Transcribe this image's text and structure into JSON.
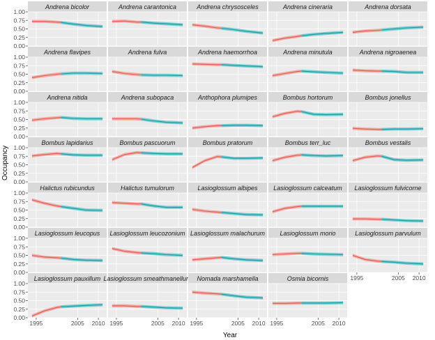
{
  "chart_data": {
    "type": "line",
    "xlabel": "Year",
    "ylabel": "Occupancy",
    "xlim": [
      1993,
      2012
    ],
    "ylim": [
      0,
      1.0
    ],
    "xticks": [
      1995,
      2005,
      2010
    ],
    "yticks": [
      0.0,
      0.25,
      0.5,
      0.75,
      1.0
    ],
    "ytick_labels": [
      "0.00",
      "0.25",
      "0.50",
      "0.75",
      "1.00"
    ],
    "xtick_labels": [
      "1995",
      "2005",
      "2010"
    ],
    "grid": true,
    "x": [
      1994,
      1997,
      2000,
      2001,
      2004,
      2007,
      2011
    ],
    "colors": {
      "early": "#f07a70",
      "late": "#1fb3b8",
      "line_early": "#e05a50",
      "line_late": "#119ba0",
      "panel": "#ebebeb",
      "strip": "#d9d9d9"
    },
    "panels": [
      {
        "title": "Andrena bicolor",
        "early": [
          0.72,
          0.72,
          0.7,
          0.69
        ],
        "late": [
          0.69,
          0.64,
          0.6,
          0.57
        ]
      },
      {
        "title": "Andrena carantonica",
        "early": [
          0.72,
          0.73,
          0.7,
          0.7
        ],
        "late": [
          0.7,
          0.67,
          0.65,
          0.62
        ]
      },
      {
        "title": "Andrena chrysosceles",
        "early": [
          0.62,
          0.58,
          0.53,
          0.52
        ],
        "late": [
          0.52,
          0.48,
          0.43,
          0.38
        ]
      },
      {
        "title": "Andrena cineraria",
        "early": [
          0.16,
          0.23,
          0.28,
          0.3
        ],
        "late": [
          0.3,
          0.34,
          0.37,
          0.4
        ]
      },
      {
        "title": "Andrena dorsata",
        "early": [
          0.4,
          0.44,
          0.46,
          0.47
        ],
        "late": [
          0.47,
          0.5,
          0.53,
          0.55
        ]
      },
      {
        "title": "Andrena flavipes",
        "early": [
          0.4,
          0.46,
          0.5,
          0.51
        ],
        "late": [
          0.51,
          0.53,
          0.53,
          0.52
        ]
      },
      {
        "title": "Andrena fulva",
        "early": [
          0.58,
          0.52,
          0.49,
          0.48
        ],
        "late": [
          0.48,
          0.47,
          0.47,
          0.46
        ]
      },
      {
        "title": "Andrena haemorrhoa",
        "early": [
          0.8,
          0.79,
          0.78,
          0.78
        ],
        "late": [
          0.78,
          0.76,
          0.74,
          0.72
        ]
      },
      {
        "title": "Andrena minutula",
        "early": [
          0.46,
          0.52,
          0.58,
          0.59
        ],
        "late": [
          0.59,
          0.57,
          0.55,
          0.53
        ]
      },
      {
        "title": "Andrena nigroaenea",
        "early": [
          0.62,
          0.6,
          0.59,
          0.59
        ],
        "late": [
          0.59,
          0.58,
          0.55,
          0.55
        ]
      },
      {
        "title": "Andrena nitida",
        "early": [
          0.48,
          0.52,
          0.55,
          0.56
        ],
        "late": [
          0.56,
          0.53,
          0.52,
          0.52
        ]
      },
      {
        "title": "Andrena subopaca",
        "early": [
          0.52,
          0.52,
          0.52,
          0.51
        ],
        "late": [
          0.51,
          0.46,
          0.42,
          0.4
        ]
      },
      {
        "title": "Anthophora plumipes",
        "early": [
          0.25,
          0.29,
          0.32,
          0.32
        ],
        "late": [
          0.32,
          0.33,
          0.33,
          0.32
        ]
      },
      {
        "title": "Bombus hortorum",
        "early": [
          0.58,
          0.68,
          0.74,
          0.73
        ],
        "late": [
          0.73,
          0.65,
          0.64,
          0.65
        ]
      },
      {
        "title": "Bombus jonellus",
        "early": [
          0.24,
          0.22,
          0.21,
          0.21
        ],
        "late": [
          0.21,
          0.22,
          0.22,
          0.23
        ]
      },
      {
        "title": "Bombus lapidarius",
        "early": [
          0.76,
          0.8,
          0.83,
          0.82
        ],
        "late": [
          0.82,
          0.79,
          0.78,
          0.78
        ]
      },
      {
        "title": "Bombus pascuorum",
        "early": [
          0.65,
          0.8,
          0.86,
          0.85
        ],
        "late": [
          0.85,
          0.83,
          0.82,
          0.82
        ]
      },
      {
        "title": "Bombus pratorum",
        "early": [
          0.42,
          0.62,
          0.74,
          0.73
        ],
        "late": [
          0.73,
          0.69,
          0.69,
          0.7
        ]
      },
      {
        "title": "Bombus terr_luc",
        "early": [
          0.62,
          0.72,
          0.78,
          0.79
        ],
        "late": [
          0.79,
          0.77,
          0.76,
          0.77
        ]
      },
      {
        "title": "Bombus vestalis",
        "early": [
          0.62,
          0.72,
          0.76,
          0.75
        ],
        "late": [
          0.75,
          0.65,
          0.63,
          0.64
        ]
      },
      {
        "title": "Halictus rubicundus",
        "early": [
          0.8,
          0.7,
          0.62,
          0.6
        ],
        "late": [
          0.6,
          0.55,
          0.5,
          0.49
        ]
      },
      {
        "title": "Halictus tumulorum",
        "early": [
          0.72,
          0.7,
          0.68,
          0.68
        ],
        "late": [
          0.68,
          0.62,
          0.58,
          0.58
        ]
      },
      {
        "title": "Lasioglossum albipes",
        "early": [
          0.52,
          0.47,
          0.44,
          0.43
        ],
        "late": [
          0.43,
          0.4,
          0.37,
          0.36
        ]
      },
      {
        "title": "Lasioglossum calceatum",
        "early": [
          0.45,
          0.55,
          0.6,
          0.61
        ],
        "late": [
          0.61,
          0.61,
          0.61,
          0.61
        ]
      },
      {
        "title": "Lasioglossum fulvicorne",
        "early": [
          0.24,
          0.24,
          0.23,
          0.23
        ],
        "late": [
          0.23,
          0.21,
          0.19,
          0.18
        ]
      },
      {
        "title": "Lasioglossum leucopus",
        "early": [
          0.5,
          0.45,
          0.43,
          0.42
        ],
        "late": [
          0.42,
          0.38,
          0.36,
          0.35
        ]
      },
      {
        "title": "Lasioglossum leucozonium",
        "early": [
          0.7,
          0.62,
          0.58,
          0.57
        ],
        "late": [
          0.57,
          0.55,
          0.52,
          0.5
        ]
      },
      {
        "title": "Lasioglossum malachurum",
        "early": [
          0.37,
          0.4,
          0.43,
          0.44
        ],
        "late": [
          0.44,
          0.4,
          0.37,
          0.35
        ]
      },
      {
        "title": "Lasioglossum morio",
        "early": [
          0.52,
          0.54,
          0.56,
          0.56
        ],
        "late": [
          0.56,
          0.54,
          0.53,
          0.52
        ]
      },
      {
        "title": "Lasioglossum parvulum",
        "early": [
          0.5,
          0.38,
          0.33,
          0.32
        ],
        "late": [
          0.32,
          0.3,
          0.27,
          0.25
        ]
      },
      {
        "title": "Lasioglossum pauxillum",
        "early": [
          0.05,
          0.2,
          0.3,
          0.32
        ],
        "late": [
          0.32,
          0.34,
          0.36,
          0.38
        ]
      },
      {
        "title": "Lasioglossum smeathmanellum",
        "early": [
          0.35,
          0.35,
          0.33,
          0.33
        ],
        "late": [
          0.33,
          0.31,
          0.29,
          0.28
        ]
      },
      {
        "title": "Nomada marshamella",
        "early": [
          0.75,
          0.72,
          0.7,
          0.69
        ],
        "late": [
          0.69,
          0.64,
          0.6,
          0.58
        ]
      },
      {
        "title": "Osmia bicornis",
        "early": [
          0.42,
          0.42,
          0.43,
          0.43
        ],
        "late": [
          0.43,
          0.43,
          0.43,
          0.44
        ]
      }
    ]
  }
}
